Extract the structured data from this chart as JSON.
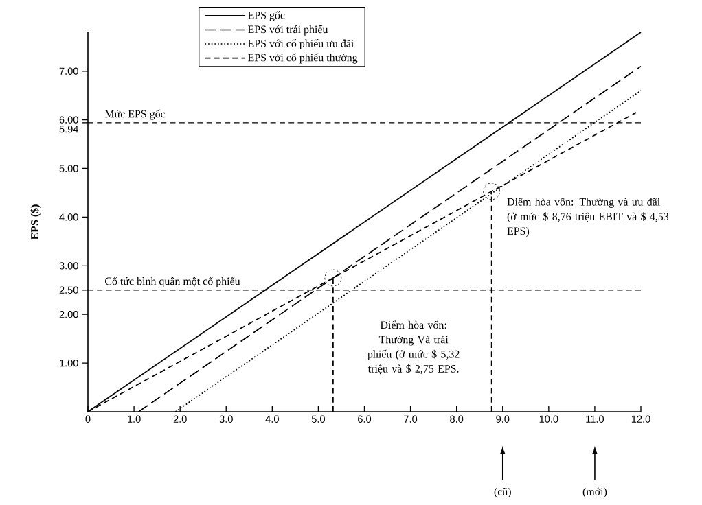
{
  "chart_data": {
    "type": "line",
    "ylabel": "EPS ($)",
    "xlim": [
      0,
      12
    ],
    "ylim": [
      0,
      7.8
    ],
    "xticks": [
      0,
      {
        "value": 1,
        "label": "1.0"
      },
      {
        "value": 2,
        "label": "2.0"
      },
      {
        "value": 3,
        "label": "3.0"
      },
      {
        "value": 4,
        "label": "4.0"
      },
      {
        "value": 5,
        "label": "5.0"
      },
      {
        "value": 6,
        "label": "6.0"
      },
      {
        "value": 7,
        "label": "7.0"
      },
      {
        "value": 8,
        "label": "8.0"
      },
      {
        "value": 9,
        "label": "9.0"
      },
      {
        "value": 10,
        "label": "10.0"
      },
      {
        "value": 11,
        "label": "11.0"
      },
      {
        "value": 12,
        "label": "12.0"
      }
    ],
    "yticks": [
      {
        "value": 1,
        "label": "1.00"
      },
      {
        "value": 2,
        "label": "2.00"
      },
      {
        "value": 2.5,
        "label": "2.50"
      },
      {
        "value": 3,
        "label": "3.00"
      },
      {
        "value": 4,
        "label": "4.00"
      },
      {
        "value": 5,
        "label": "5.00"
      },
      {
        "value": 5.94,
        "label": "5.94"
      },
      {
        "value": 6,
        "label": "6.00"
      },
      {
        "value": 7,
        "label": "7.00"
      }
    ],
    "series": [
      {
        "name": "EPS gốc",
        "color": "#000000",
        "line_style": "solid",
        "x": [
          0,
          12
        ],
        "values": [
          0,
          7.8
        ]
      },
      {
        "name": "EPS với trái phiếu",
        "color": "#000000",
        "line_style": "dashed",
        "x": [
          1.1,
          12
        ],
        "values": [
          0,
          7.1
        ]
      },
      {
        "name": "EPS với cổ phiếu ưu đãi",
        "color": "#000000",
        "line_style": "dotted",
        "x": [
          1.9,
          12
        ],
        "values": [
          0,
          6.6
        ]
      },
      {
        "name": "EPS với cổ phiếu thường",
        "color": "#000000",
        "line_style": "dashed",
        "x": [
          0,
          11.9
        ],
        "values": [
          0,
          6.15
        ]
      },
      {
        "color": "#000000",
        "line_style": "dashed",
        "x": [
          8.76,
          8.76
        ],
        "values": [
          0,
          4.53
        ]
      },
      {
        "color": "#000000",
        "line_style": "dashed",
        "x": [
          5.32,
          5.32
        ],
        "values": [
          0,
          2.75
        ]
      }
    ],
    "ref_lines": [
      {
        "axis": "y",
        "value": 5.94,
        "label": "Mức EPS gốc",
        "color": "#000000",
        "line_style": "dashed"
      },
      {
        "axis": "y",
        "value": 2.5,
        "label": "Cổ tức bình quân một cổ phiếu",
        "color": "#000000",
        "line_style": "dashed"
      }
    ],
    "annotations": [
      {
        "text": "Điểm hòa vốn: Thường và ưu đãi (ở mức $ 8,76 triệu EBIT và $ 4,53 EPS)",
        "x": 8.76,
        "y": 4.53
      },
      "Điểm hòa vốn: Thường Và trái phiếu (ở mức $ 5,32 triệu và $ 2,75 EPS.",
      "(cũ)",
      "(mới)"
    ],
    "legend": "top",
    "marker": "none",
    "grid": false
  }
}
